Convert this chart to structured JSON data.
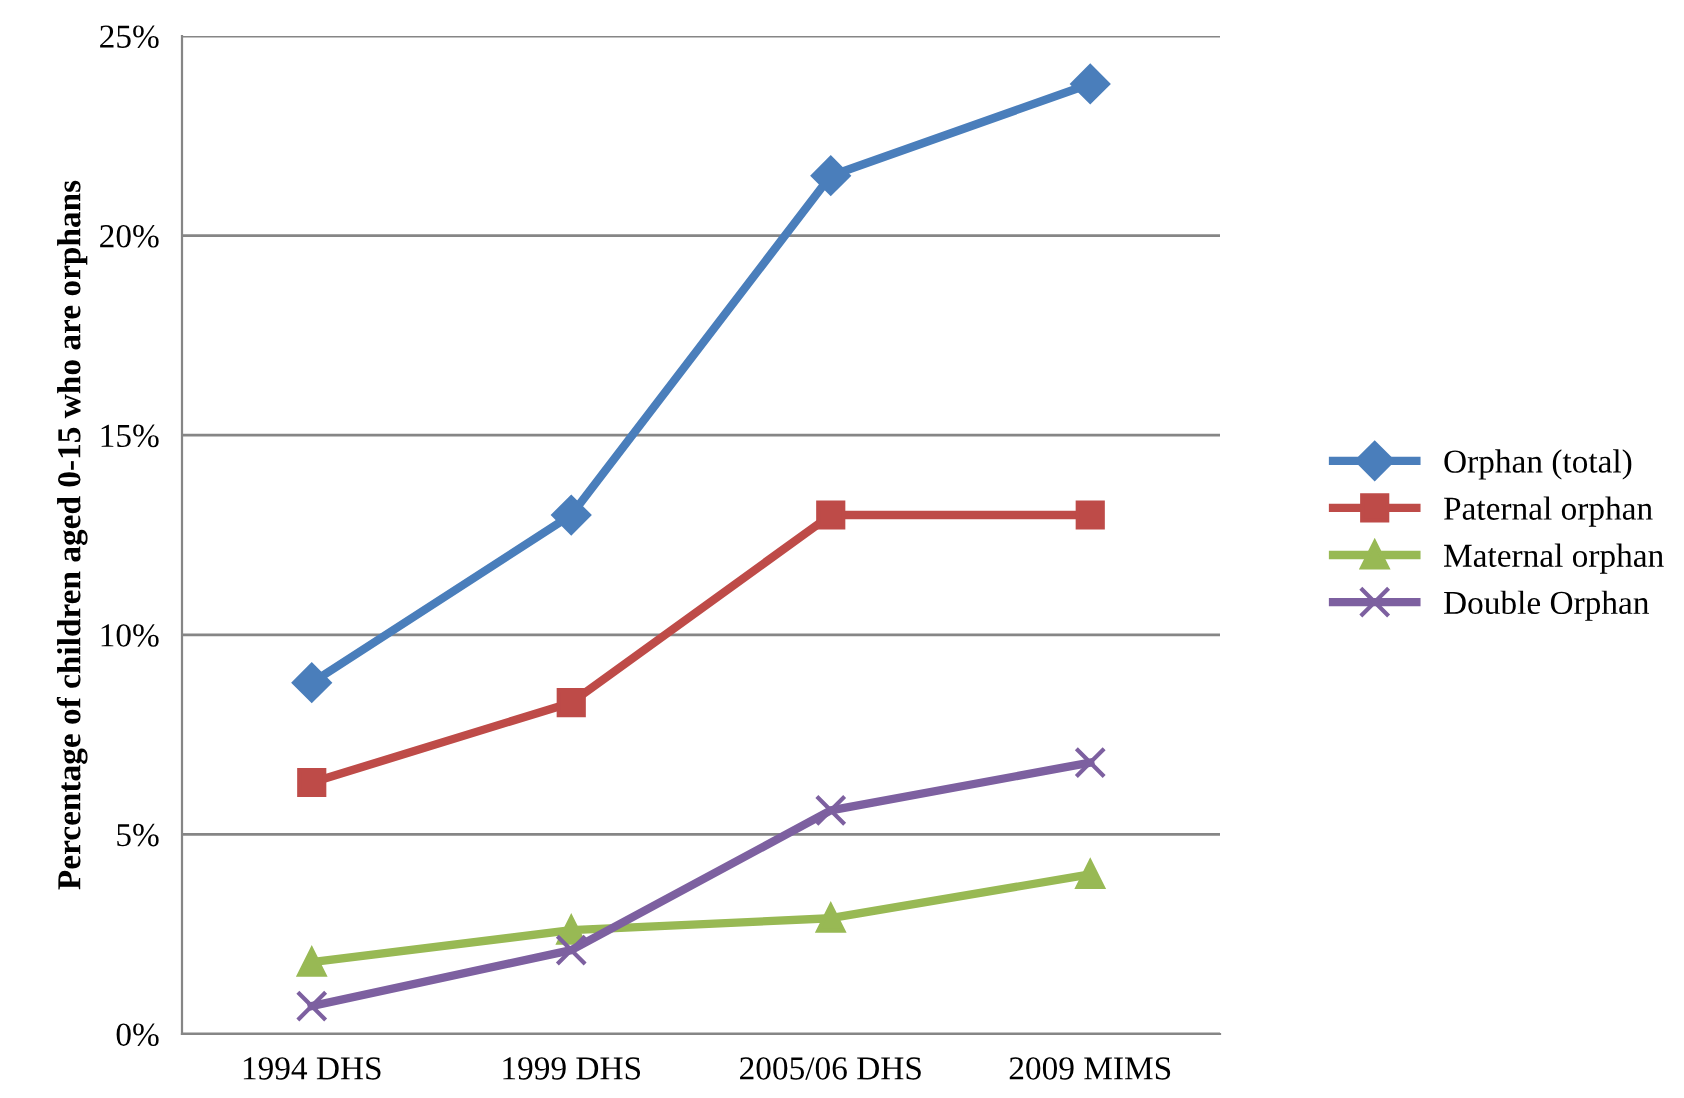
{
  "chart_data": {
    "type": "line",
    "ylabel": "Percentage of children aged 0-15 who are orphans",
    "categories": [
      "1994 DHS",
      "1999 DHS",
      "2005/06 DHS",
      "2009 MIMS"
    ],
    "series": [
      {
        "name": "Orphan (total)",
        "color": "#4a7ebb",
        "marker": "diamond",
        "values": [
          8.8,
          13.0,
          21.5,
          23.8
        ]
      },
      {
        "name": "Paternal orphan",
        "color": "#be4b48",
        "marker": "square",
        "values": [
          6.3,
          8.3,
          13.0,
          13.0
        ]
      },
      {
        "name": "Maternal orphan",
        "color": "#98b954",
        "marker": "triangle",
        "values": [
          1.8,
          2.6,
          2.9,
          4.0
        ]
      },
      {
        "name": "Double Orphan",
        "color": "#7d60a0",
        "marker": "cross",
        "values": [
          0.7,
          2.1,
          5.6,
          6.8
        ]
      }
    ],
    "ylim": [
      0,
      25
    ],
    "yticks": [
      {
        "value": 0,
        "label": "0%"
      },
      {
        "value": 5,
        "label": "5%"
      },
      {
        "value": 10,
        "label": "10%"
      },
      {
        "value": 15,
        "label": "15%"
      },
      {
        "value": 20,
        "label": "20%"
      },
      {
        "value": 25,
        "label": "25%"
      }
    ],
    "grid": "y",
    "legend": "right",
    "line_style": "solid"
  }
}
